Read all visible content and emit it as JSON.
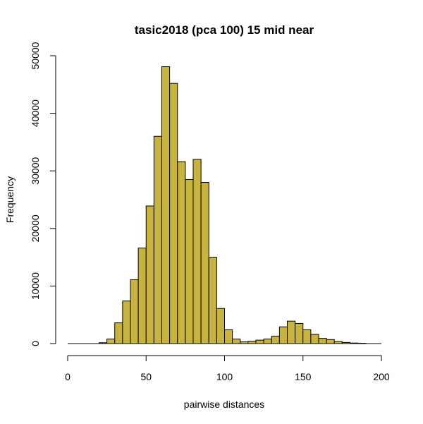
{
  "chart_data": {
    "type": "bar",
    "title": "tasic2018 (pca 100) 15 mid near",
    "xlabel": "pairwise distances",
    "ylabel": "Frequency",
    "xlim": [
      0,
      200
    ],
    "ylim": [
      0,
      50000
    ],
    "x_ticks": [
      0,
      50,
      100,
      150,
      200
    ],
    "y_ticks": [
      0,
      10000,
      20000,
      30000,
      40000,
      50000
    ],
    "bin_width": 5,
    "bins": [
      {
        "x0": 20,
        "x1": 25,
        "count": 150
      },
      {
        "x0": 25,
        "x1": 30,
        "count": 800
      },
      {
        "x0": 30,
        "x1": 35,
        "count": 3600
      },
      {
        "x0": 35,
        "x1": 40,
        "count": 7400
      },
      {
        "x0": 40,
        "x1": 45,
        "count": 11100
      },
      {
        "x0": 45,
        "x1": 50,
        "count": 16600
      },
      {
        "x0": 50,
        "x1": 55,
        "count": 23900
      },
      {
        "x0": 55,
        "x1": 60,
        "count": 36000
      },
      {
        "x0": 60,
        "x1": 65,
        "count": 48100
      },
      {
        "x0": 65,
        "x1": 70,
        "count": 45200
      },
      {
        "x0": 70,
        "x1": 75,
        "count": 31600
      },
      {
        "x0": 75,
        "x1": 80,
        "count": 28500
      },
      {
        "x0": 80,
        "x1": 85,
        "count": 32000
      },
      {
        "x0": 85,
        "x1": 90,
        "count": 28000
      },
      {
        "x0": 90,
        "x1": 95,
        "count": 15000
      },
      {
        "x0": 95,
        "x1": 100,
        "count": 6100
      },
      {
        "x0": 100,
        "x1": 105,
        "count": 2400
      },
      {
        "x0": 105,
        "x1": 110,
        "count": 800
      },
      {
        "x0": 110,
        "x1": 115,
        "count": 300
      },
      {
        "x0": 115,
        "x1": 120,
        "count": 400
      },
      {
        "x0": 120,
        "x1": 125,
        "count": 600
      },
      {
        "x0": 125,
        "x1": 130,
        "count": 800
      },
      {
        "x0": 130,
        "x1": 135,
        "count": 1300
      },
      {
        "x0": 135,
        "x1": 140,
        "count": 2900
      },
      {
        "x0": 140,
        "x1": 145,
        "count": 3900
      },
      {
        "x0": 145,
        "x1": 150,
        "count": 3500
      },
      {
        "x0": 150,
        "x1": 155,
        "count": 2400
      },
      {
        "x0": 155,
        "x1": 160,
        "count": 1600
      },
      {
        "x0": 160,
        "x1": 165,
        "count": 900
      },
      {
        "x0": 165,
        "x1": 170,
        "count": 700
      },
      {
        "x0": 170,
        "x1": 175,
        "count": 350
      },
      {
        "x0": 175,
        "x1": 180,
        "count": 200
      },
      {
        "x0": 180,
        "x1": 185,
        "count": 100
      },
      {
        "x0": 185,
        "x1": 190,
        "count": 50
      }
    ],
    "bar_color": "#C8B43C",
    "bar_stroke": "#000000",
    "grid": false,
    "legend": "none"
  }
}
